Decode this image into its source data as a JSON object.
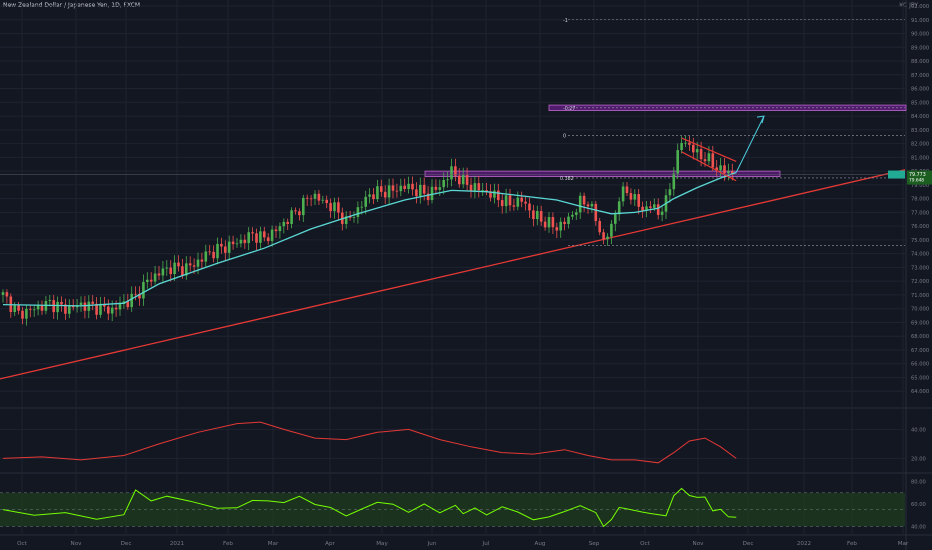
{
  "header": {
    "symbol_title": "New Zealand Dollar / Japanese Yen, 1D, FXCM",
    "currency_label": "¥C JPY"
  },
  "colors": {
    "background": "#131722",
    "grid": "#1f2330",
    "candle_up": "#26a69a",
    "candle_up_bright": "#4caf50",
    "candle_down": "#ef5350",
    "ma_line": "#5ad8d4",
    "trendline": "#e53935",
    "zone_fill": "#7b1fa2",
    "zone_border": "#ba68c8",
    "projection_arrow": "#4dd0e1",
    "oscillator1": "#e53935",
    "oscillator2": "#76ff03",
    "oscillator2_band": "#1e3a1e"
  },
  "chart_data": [
    {
      "type": "candlestick",
      "name": "price",
      "ylim": [
        63,
        92
      ],
      "y_ticks": [
        "92.000",
        "91.000",
        "90.000",
        "89.000",
        "88.000",
        "87.000",
        "86.000",
        "85.000",
        "84.000",
        "83.000",
        "82.000",
        "81.000",
        "80.000",
        "79.000",
        "78.000",
        "77.000",
        "76.000",
        "75.000",
        "74.000",
        "73.000",
        "72.000",
        "71.000",
        "70.000",
        "69.000",
        "68.000",
        "67.000",
        "66.000",
        "65.000",
        "64.000"
      ],
      "x_ticks": [
        "Oct",
        "Nov",
        "Dec",
        "2021",
        "Feb",
        "Mar",
        "Apr",
        "May",
        "Jun",
        "Jul",
        "Aug",
        "Sep",
        "Oct",
        "Nov",
        "Dec",
        "2022",
        "Feb",
        "Mar"
      ],
      "close_path": [
        [
          0,
          71.0
        ],
        [
          4,
          69.6
        ],
        [
          8,
          70.0
        ],
        [
          12,
          70.4
        ],
        [
          16,
          70.0
        ],
        [
          20,
          70.3
        ],
        [
          24,
          70.1
        ],
        [
          28,
          69.9
        ],
        [
          31,
          70.4
        ],
        [
          34,
          70.9
        ],
        [
          37,
          72.0
        ],
        [
          40,
          72.6
        ],
        [
          43,
          73.0
        ],
        [
          46,
          72.9
        ],
        [
          49,
          73.2
        ],
        [
          52,
          73.9
        ],
        [
          55,
          74.3
        ],
        [
          58,
          74.6
        ],
        [
          61,
          74.9
        ],
        [
          64,
          75.4
        ],
        [
          67,
          75.1
        ],
        [
          70,
          75.7
        ],
        [
          73,
          76.5
        ],
        [
          76,
          77.3
        ],
        [
          79,
          78.3
        ],
        [
          82,
          77.8
        ],
        [
          85,
          77.3
        ],
        [
          88,
          76.3
        ],
        [
          91,
          77.2
        ],
        [
          94,
          78.3
        ],
        [
          97,
          78.5
        ],
        [
          100,
          78.6
        ],
        [
          103,
          78.9
        ],
        [
          106,
          78.6
        ],
        [
          109,
          78.3
        ],
        [
          112,
          78.9
        ],
        [
          115,
          80.0
        ],
        [
          118,
          79.2
        ],
        [
          121,
          78.8
        ],
        [
          124,
          78.5
        ],
        [
          127,
          78.0
        ],
        [
          130,
          77.6
        ],
        [
          133,
          77.9
        ],
        [
          136,
          76.8
        ],
        [
          139,
          76.3
        ],
        [
          142,
          75.9
        ],
        [
          145,
          76.5
        ],
        [
          148,
          77.7
        ],
        [
          150,
          77.8
        ],
        [
          152,
          76.5
        ],
        [
          154,
          74.9
        ],
        [
          156,
          75.9
        ],
        [
          158,
          78.1
        ],
        [
          160,
          78.6
        ],
        [
          162,
          77.9
        ],
        [
          164,
          77.2
        ],
        [
          166,
          77.5
        ],
        [
          168,
          77.0
        ],
        [
          170,
          77.7
        ],
        [
          172,
          80.1
        ],
        [
          174,
          82.2
        ],
        [
          176,
          81.9
        ],
        [
          178,
          81.2
        ],
        [
          180,
          81.0
        ],
        [
          182,
          80.5
        ],
        [
          184,
          80.1
        ],
        [
          186,
          79.9
        ],
        [
          188,
          79.7
        ]
      ],
      "x_ratio": [
        0.0,
        0.7
      ],
      "moving_average": [
        [
          0,
          70.3
        ],
        [
          20,
          70.2
        ],
        [
          31,
          70.4
        ],
        [
          40,
          71.8
        ],
        [
          55,
          73.3
        ],
        [
          67,
          74.4
        ],
        [
          79,
          75.8
        ],
        [
          91,
          76.9
        ],
        [
          103,
          77.9
        ],
        [
          115,
          78.6
        ],
        [
          124,
          78.5
        ],
        [
          133,
          78.2
        ],
        [
          142,
          77.9
        ],
        [
          150,
          77.3
        ],
        [
          156,
          76.9
        ],
        [
          162,
          77.0
        ],
        [
          168,
          77.3
        ],
        [
          172,
          78.0
        ],
        [
          178,
          78.8
        ],
        [
          184,
          79.5
        ],
        [
          188,
          79.9
        ]
      ],
      "current_price_label": "79.773",
      "current_price_label2": "79.648",
      "current_price_time": "1d 00:21",
      "annotations": {
        "fib_levels": [
          {
            "label": "-1",
            "price": 91.0
          },
          {
            "label": "-0.27",
            "price": 84.6
          },
          {
            "label": "0",
            "price": 82.6
          },
          {
            "label": "0.382",
            "price": 79.5
          }
        ],
        "support_level_price": 74.6,
        "resistance_zone": [
          79.6,
          80.0
        ],
        "target_zone": [
          84.4,
          84.8
        ],
        "trendline_start": [
          0,
          64.9
        ],
        "trendline_end": [
          1.0,
          80.1
        ],
        "channel_top": [
          [
            174,
            82.4
          ],
          [
            188,
            80.7
          ]
        ],
        "channel_bottom": [
          [
            174,
            81.4
          ],
          [
            188,
            79.3
          ]
        ],
        "arrow_from": [
          188,
          79.9
        ],
        "arrow_to": [
          200,
          84.0
        ]
      }
    },
    {
      "type": "line",
      "name": "oscillator_1",
      "ylim": [
        12,
        52
      ],
      "y_ticks": [
        "40.00",
        "20.00"
      ],
      "values": [
        [
          0,
          20
        ],
        [
          10,
          21
        ],
        [
          20,
          19
        ],
        [
          31,
          22
        ],
        [
          40,
          30
        ],
        [
          50,
          38
        ],
        [
          60,
          44
        ],
        [
          66,
          45
        ],
        [
          72,
          40
        ],
        [
          80,
          34
        ],
        [
          88,
          33
        ],
        [
          96,
          38
        ],
        [
          104,
          40
        ],
        [
          112,
          33
        ],
        [
          120,
          28
        ],
        [
          128,
          24
        ],
        [
          136,
          23
        ],
        [
          144,
          26
        ],
        [
          150,
          22
        ],
        [
          156,
          19
        ],
        [
          162,
          19
        ],
        [
          168,
          17
        ],
        [
          172,
          24
        ],
        [
          176,
          32
        ],
        [
          180,
          34
        ],
        [
          184,
          28
        ],
        [
          188,
          20
        ]
      ]
    },
    {
      "type": "line",
      "name": "oscillator_2",
      "ylim": [
        35,
        85
      ],
      "y_ticks": [
        "80.00",
        "60.00",
        "40.00"
      ],
      "band": [
        40,
        70
      ],
      "values": [
        [
          0,
          55
        ],
        [
          8,
          52
        ],
        [
          16,
          50
        ],
        [
          24,
          47
        ],
        [
          31,
          52
        ],
        [
          34,
          70
        ],
        [
          38,
          64
        ],
        [
          42,
          68
        ],
        [
          48,
          60
        ],
        [
          55,
          58
        ],
        [
          60,
          57
        ],
        [
          64,
          61
        ],
        [
          68,
          65
        ],
        [
          72,
          61
        ],
        [
          76,
          65
        ],
        [
          80,
          62
        ],
        [
          84,
          56
        ],
        [
          88,
          48
        ],
        [
          92,
          58
        ],
        [
          96,
          60
        ],
        [
          100,
          59
        ],
        [
          104,
          55
        ],
        [
          108,
          58
        ],
        [
          112,
          52
        ],
        [
          116,
          61
        ],
        [
          118,
          49
        ],
        [
          121,
          57
        ],
        [
          124,
          52
        ],
        [
          128,
          55
        ],
        [
          132,
          54
        ],
        [
          136,
          47
        ],
        [
          140,
          46
        ],
        [
          144,
          55
        ],
        [
          148,
          59
        ],
        [
          152,
          50
        ],
        [
          154,
          42
        ],
        [
          156,
          46
        ],
        [
          158,
          55
        ],
        [
          160,
          58
        ],
        [
          164,
          52
        ],
        [
          166,
          50
        ],
        [
          170,
          52
        ],
        [
          172,
          66
        ],
        [
          174,
          73
        ],
        [
          176,
          70
        ],
        [
          178,
          64
        ],
        [
          180,
          66
        ],
        [
          182,
          56
        ],
        [
          184,
          53
        ],
        [
          186,
          49
        ],
        [
          188,
          50
        ]
      ]
    }
  ]
}
